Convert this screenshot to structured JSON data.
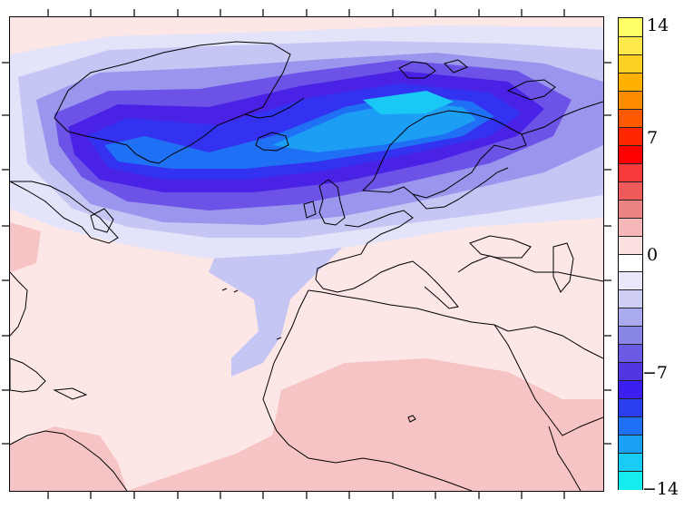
{
  "colorbar": {
    "labels": [
      "14",
      "7",
      "0",
      "−7",
      "−14"
    ],
    "label_values": [
      14,
      7,
      0,
      -7,
      -14
    ],
    "range": [
      -14,
      14
    ],
    "colors_top_to_bottom": [
      "#ffff66",
      "#ffe94a",
      "#ffd024",
      "#ffb000",
      "#ff8c00",
      "#ff5a00",
      "#ff2600",
      "#ff0000",
      "#f83a3a",
      "#f05a5a",
      "#ec8484",
      "#f5b7b7",
      "#fbe0e0",
      "#ffffff",
      "#e8e8fa",
      "#cfcff5",
      "#aaaaee",
      "#8a86e8",
      "#6a5ae4",
      "#5136e2",
      "#3a1ff0",
      "#2a3ef0",
      "#2070f5",
      "#1aa0f5",
      "#18ccf5",
      "#14ecf0"
    ]
  },
  "map": {
    "field_colors": {
      "strong_neg": "#13e8f0",
      "neg_cyan": "#19c8f5",
      "neg_light_blue": "#1d9ef5",
      "neg_blue": "#2070f5",
      "neg_deep_blue": "#3232f0",
      "neg_violet": "#4a22e6",
      "neg_purple": "#6c52e6",
      "neg_lavender": "#9a96ee",
      "neg_pale": "#c6c6f4",
      "neg_faint": "#e3e3fa",
      "zero": "#ffffff",
      "pos_faint": "#fce6e6",
      "pos_light": "#f6c4c4",
      "pos_mid": "#f2aaaa"
    },
    "coastline_color": "#000000"
  }
}
